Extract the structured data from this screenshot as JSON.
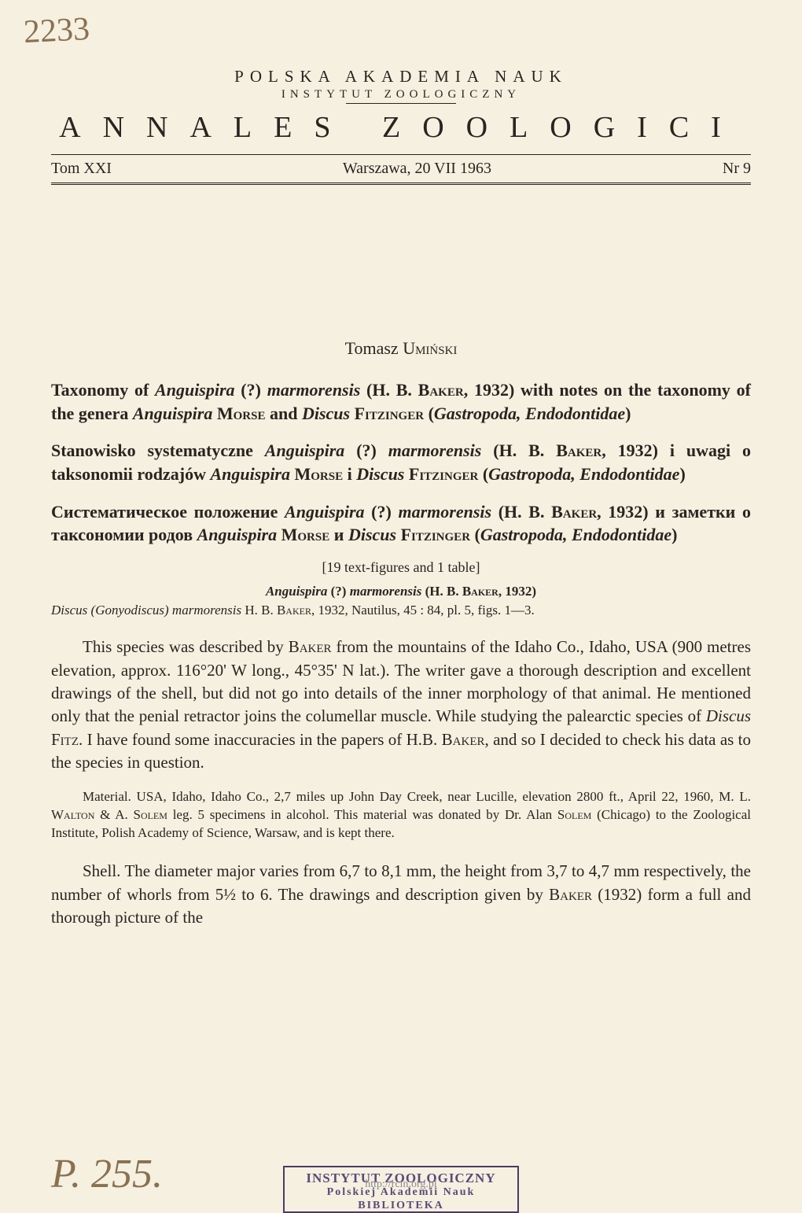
{
  "handwritten_top": "2233",
  "header": {
    "institution": "POLSKA AKADEMIA NAUK",
    "subinstitution": "INSTYTUT ZOOLOGICZNY",
    "journal_title": "ANNALES ZOOLOGICI",
    "volume": "Tom XXI",
    "place_date": "Warszawa, 20 VII 1963",
    "issue": "Nr 9"
  },
  "author": {
    "first": "Tomasz",
    "surname": "Umiński"
  },
  "titles": {
    "english_part1": "Taxonomy of ",
    "english_species": "Anguispira",
    "english_q": " (?) ",
    "english_species2": "marmorensis",
    "english_part2": " (H. B. ",
    "english_baker": "Baker",
    "english_part3": ", 1932) with notes on the taxonomy of the genera ",
    "english_genus1": "Anguispira",
    "english_morse": " Morse",
    "english_and": " and ",
    "english_genus2": "Discus",
    "english_fitz": " Fitzinger",
    "english_paren": " (",
    "english_tax": "Gastropoda, Endodontidae",
    "english_close": ")",
    "polish_part1": "Stanowisko systematyczne ",
    "polish_part2": " (H. B. ",
    "polish_part3": ", 1932) i uwagi o taksonomii rodzajów ",
    "polish_i": " i ",
    "russian_part1": "Систематическое положение ",
    "russian_part2": " (H. B. ",
    "russian_part3": ", 1932) и заметки о таксономии родов ",
    "russian_i": " и "
  },
  "figures_note": "[19 text-figures and 1 table]",
  "species_heading": {
    "genus": "Anguispira",
    "q": " (?) ",
    "species": "marmorensis",
    "auth": " (H. B. ",
    "baker": "Baker",
    "year": ", 1932)"
  },
  "citation": {
    "genus": "Discus (Gonyodiscus) marmorensis",
    "rest": " H. B. ",
    "baker": "Baker",
    "end": ", 1932, Nautilus, 45 : 84, pl. 5, figs. 1—3."
  },
  "para1": {
    "p1": "This species was described by ",
    "baker1": "Baker",
    "p2": " from the mountains of the Idaho Co., Idaho, USA (900 metres elevation, approx. 116°20' W long., 45°35' N lat.). The writer gave a thorough description and excellent drawings of the shell, but did not go into details of the inner morphology of that animal. He mentioned only that the penial retractor joins the columellar muscle. While studying the palearctic species of ",
    "discus": "Discus",
    "fitz": " Fitz.",
    "p3": " I have found some inaccuracies in the papers of H.B. ",
    "baker2": "Baker",
    "p4": ", and so I decided to check his data as to the species in question."
  },
  "para2": {
    "p1": "Material. USA, Idaho, Idaho Co., 2,7 miles up John Day Creek, near Lucille, elevation 2800 ft., April 22, 1960, M. L. ",
    "walton": "Walton",
    "amp": " & A. ",
    "solem": "Solem",
    "p2": " leg. 5 specimens in alcohol. This material was donated by Dr. Alan ",
    "solem2": "Solem",
    "p3": " (Chicago) to the Zoological Institute, Polish Academy of Science, Warsaw, and is kept there."
  },
  "para3": {
    "p1": "Shell. The diameter major varies from 6,7 to 8,1 mm, the height from 3,7 to 4,7 mm respectively, the number of whorls from 5½ to 6. The drawings and description given by ",
    "baker": "Baker",
    "p2": " (1932) form a full and thorough picture of the"
  },
  "handwritten_bottom": "P. 255.",
  "stamp": {
    "line1": "INSTYTUT ZOOLOGICZNY",
    "line2": "Polskiej Akademii Nauk",
    "line3": "BIBLIOTEKA",
    "watermark": "http://rcin.org.pl"
  },
  "colors": {
    "background": "#f5f0e0",
    "text": "#2a2420",
    "handwriting": "#8a7050",
    "stamp": "#5a4a7a"
  }
}
